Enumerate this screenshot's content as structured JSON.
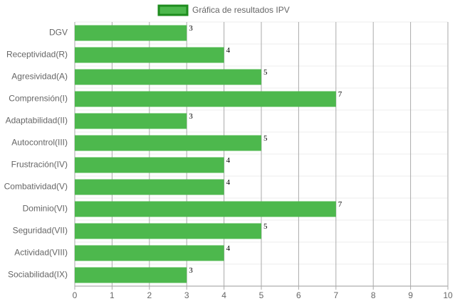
{
  "chart_data": {
    "type": "bar",
    "orientation": "horizontal",
    "categories": [
      "DGV",
      "Receptividad(R)",
      "Agresividad(A)",
      "Comprensión(I)",
      "Adaptabilidad(II)",
      "Autocontrol(III)",
      "Frustración(IV)",
      "Combatividad(V)",
      "Dominio(VI)",
      "Seguridad(VII)",
      "Actividad(VIII)",
      "Sociabilidad(IX)"
    ],
    "series": [
      {
        "name": "Gráfica de resultados IPV",
        "color": "#4db84d",
        "border": "#1e8c1e",
        "values": [
          3,
          4,
          5,
          7,
          3,
          5,
          4,
          4,
          7,
          5,
          4,
          3
        ]
      }
    ],
    "xlim": [
      0,
      10
    ],
    "xticks": [
      0,
      1,
      2,
      3,
      4,
      5,
      6,
      7,
      8,
      9,
      10
    ],
    "grid": true,
    "legend": "top"
  }
}
